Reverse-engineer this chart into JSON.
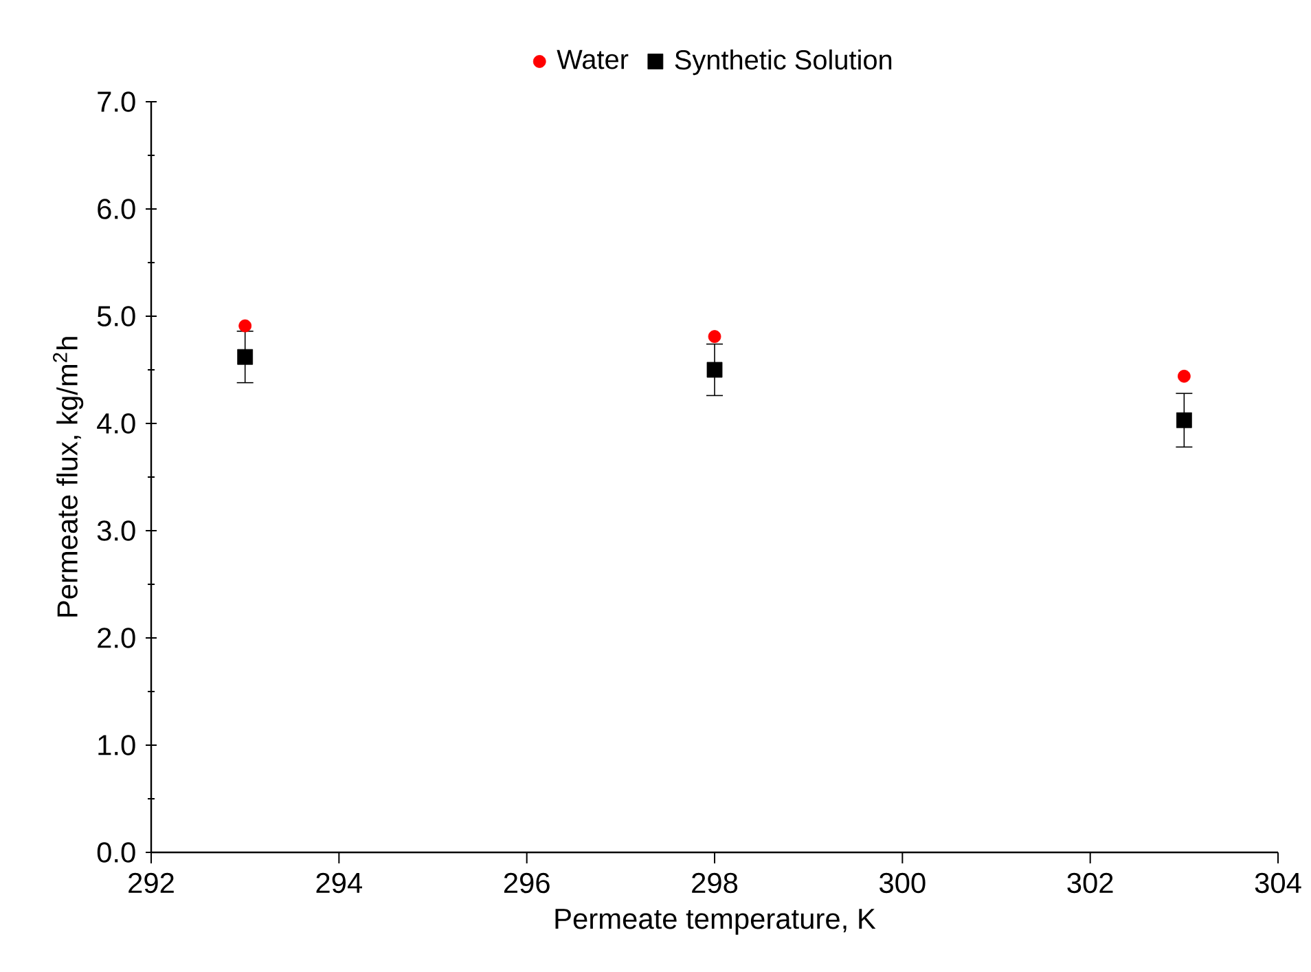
{
  "chart_data": {
    "type": "scatter",
    "xlabel": "Permeate temperature, K",
    "ylabel": "Permeate flux, kg/m$^{2}$h",
    "x": [
      293,
      298,
      303
    ],
    "series": [
      {
        "name": "Water",
        "color": "#ff0000",
        "marker": "circle",
        "values": [
          4.91,
          4.81,
          4.44
        ]
      },
      {
        "name": "Synthetic Solution",
        "color": "#000000",
        "marker": "square",
        "values": [
          4.62,
          4.5,
          4.03
        ],
        "errors": [
          0.24,
          0.24,
          0.25
        ]
      }
    ],
    "xlim": [
      292,
      304
    ],
    "xticks": [
      292,
      294,
      296,
      298,
      300,
      302,
      304
    ],
    "ylim": [
      0,
      7
    ],
    "yticks": [
      {
        "value": 0,
        "label": "0.0"
      },
      {
        "value": 1,
        "label": "1.0"
      },
      {
        "value": 2,
        "label": "2.0"
      },
      {
        "value": 3,
        "label": "3.0"
      },
      {
        "value": 4,
        "label": "4.0"
      },
      {
        "value": 5,
        "label": "5.0"
      },
      {
        "value": 6,
        "label": "6.0"
      },
      {
        "value": 7,
        "label": "7.0"
      }
    ],
    "grid": false,
    "legend": "top"
  }
}
